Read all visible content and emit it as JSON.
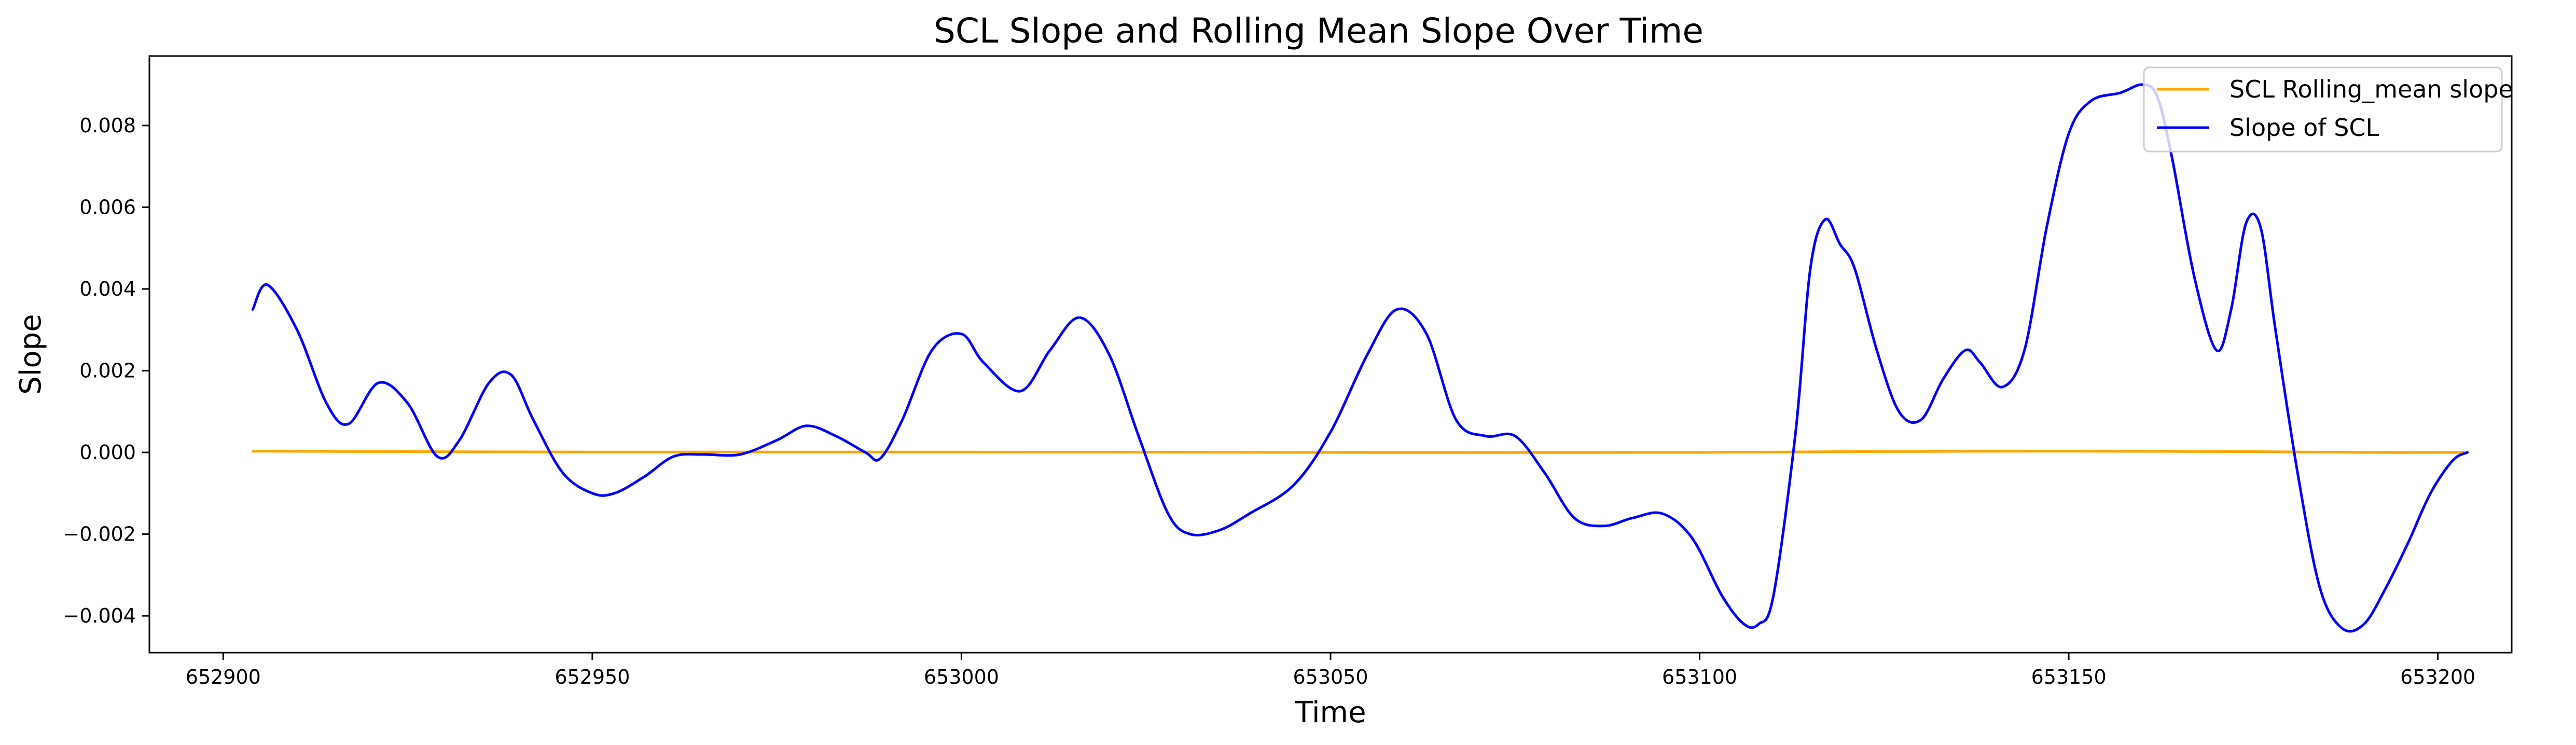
{
  "chart_data": {
    "type": "line",
    "title": "SCL Slope and Rolling Mean Slope Over Time",
    "xlabel": "Time",
    "ylabel": "Slope",
    "xlim": [
      652890,
      653210
    ],
    "ylim": [
      -0.0049,
      0.0097
    ],
    "xticks": [
      652900,
      652950,
      653000,
      653050,
      653100,
      653150,
      653200
    ],
    "xtick_labels": [
      "652900",
      "652950",
      "653000",
      "653050",
      "653100",
      "653150",
      "653200"
    ],
    "yticks": [
      -0.004,
      -0.002,
      0.0,
      0.002,
      0.004,
      0.006,
      0.008
    ],
    "ytick_labels": [
      "−0.004",
      "−0.002",
      "0.000",
      "0.002",
      "0.004",
      "0.006",
      "0.008"
    ],
    "grid": false,
    "legend_position": "top-right",
    "series": [
      {
        "name": "SCL Rolling_mean slope",
        "color": "#ffa500",
        "x": [
          652904,
          652950,
          653000,
          653050,
          653100,
          653120,
          653150,
          653175,
          653190,
          653204
        ],
        "y": [
          3e-05,
          1e-05,
          1e-05,
          0.0,
          0.0,
          2e-05,
          3e-05,
          2e-05,
          0.0,
          0.0
        ]
      },
      {
        "name": "Slope of SCL",
        "color": "#0000ff",
        "x": [
          652904,
          652906,
          652910,
          652914,
          652917,
          652921,
          652925,
          652929,
          652932,
          652936,
          652939,
          652942,
          652946,
          652950,
          652953,
          652957,
          652961,
          652965,
          652970,
          652975,
          652979,
          652983,
          652987,
          652989,
          652992,
          652996,
          653000,
          653003,
          653008,
          653012,
          653016,
          653020,
          653024,
          653028,
          653031,
          653035,
          653039,
          653045,
          653050,
          653055,
          653059,
          653063,
          653067,
          653071,
          653075,
          653079,
          653083,
          653087,
          653091,
          653095,
          653099,
          653103,
          653106,
          653108,
          653110,
          653113,
          653115,
          653117,
          653119,
          653121,
          653124,
          653127,
          653130,
          653133,
          653136,
          653138,
          653141,
          653144,
          653147,
          653150,
          653153,
          653157,
          653160,
          653162,
          653164,
          653167,
          653170,
          653172,
          653174,
          653176,
          653178,
          653181,
          653184,
          653187,
          653190,
          653193,
          653196,
          653199,
          653202,
          653204
        ],
        "y": [
          0.0035,
          0.0041,
          0.003,
          0.0012,
          0.0007,
          0.0017,
          0.0012,
          -0.0001,
          0.0003,
          0.0017,
          0.0019,
          0.0008,
          -0.0005,
          -0.001,
          -0.001,
          -0.0006,
          -0.0001,
          -5e-05,
          -5e-05,
          0.0003,
          0.00065,
          0.0004,
          0.0,
          -0.00015,
          0.0008,
          0.0025,
          0.0029,
          0.0022,
          0.0015,
          0.0025,
          0.0033,
          0.0024,
          0.0004,
          -0.0015,
          -0.002,
          -0.0019,
          -0.0015,
          -0.0008,
          0.0005,
          0.0024,
          0.0035,
          0.0029,
          0.0008,
          0.0004,
          0.0004,
          -0.0005,
          -0.0016,
          -0.0018,
          -0.0016,
          -0.0015,
          -0.0021,
          -0.0035,
          -0.0042,
          -0.0042,
          -0.0035,
          0.0005,
          0.0045,
          0.0057,
          0.0051,
          0.0045,
          0.0025,
          0.001,
          0.0008,
          0.0018,
          0.0025,
          0.0022,
          0.0016,
          0.0025,
          0.0055,
          0.0078,
          0.0086,
          0.0088,
          0.009,
          0.0087,
          0.0072,
          0.0043,
          0.0025,
          0.0035,
          0.0056,
          0.0055,
          0.003,
          -0.0005,
          -0.0033,
          -0.0043,
          -0.0042,
          -0.0033,
          -0.0022,
          -0.001,
          -0.0002,
          0.0
        ]
      }
    ]
  }
}
